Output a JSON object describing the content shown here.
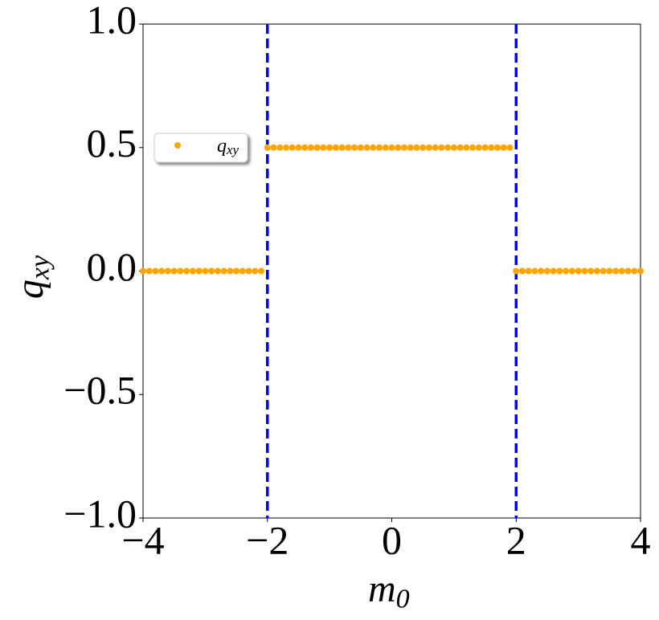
{
  "chart_data": {
    "type": "scatter",
    "x_label": {
      "text": "m",
      "sub": "0"
    },
    "y_label": {
      "text": "q",
      "sub": "xy"
    },
    "x": [
      -4,
      -3.9,
      -3.8,
      -3.7,
      -3.6,
      -3.5,
      -3.4,
      -3.3,
      -3.2,
      -3.1,
      -3,
      -2.9,
      -2.8,
      -2.7,
      -2.6,
      -2.5,
      -2.4,
      -2.3,
      -2.2,
      -2.1,
      -2,
      -1.9,
      -1.8,
      -1.7,
      -1.6,
      -1.5,
      -1.4,
      -1.3,
      -1.2,
      -1.1,
      -1,
      -0.9,
      -0.8,
      -0.7,
      -0.6,
      -0.5,
      -0.4,
      -0.3,
      -0.2,
      -0.1,
      0,
      0.1,
      0.2,
      0.3,
      0.4,
      0.5,
      0.6,
      0.7,
      0.8,
      0.9,
      1,
      1.1,
      1.2,
      1.3,
      1.4,
      1.5,
      1.6,
      1.7,
      1.8,
      1.9,
      2,
      2.1,
      2.2,
      2.3,
      2.4,
      2.5,
      2.6,
      2.7,
      2.8,
      2.9,
      3,
      3.1,
      3.2,
      3.3,
      3.4,
      3.5,
      3.6,
      3.7,
      3.8,
      3.9,
      4
    ],
    "series": [
      {
        "name": {
          "text": "q",
          "sub": "xy"
        },
        "color": "#ffa500",
        "values": [
          0,
          0,
          0,
          0,
          0,
          0,
          0,
          0,
          0,
          0,
          0,
          0,
          0,
          0,
          0,
          0,
          0,
          0,
          0,
          0,
          0.5,
          0.5,
          0.5,
          0.5,
          0.5,
          0.5,
          0.5,
          0.5,
          0.5,
          0.5,
          0.5,
          0.5,
          0.5,
          0.5,
          0.5,
          0.5,
          0.5,
          0.5,
          0.5,
          0.5,
          0.5,
          0.5,
          0.5,
          0.5,
          0.5,
          0.5,
          0.5,
          0.5,
          0.5,
          0.5,
          0.5,
          0.5,
          0.5,
          0.5,
          0.5,
          0.5,
          0.5,
          0.5,
          0.5,
          0.5,
          0,
          0,
          0,
          0,
          0,
          0,
          0,
          0,
          0,
          0,
          0,
          0,
          0,
          0,
          0,
          0,
          0,
          0,
          0,
          0,
          0
        ]
      }
    ],
    "vlines": [
      -2,
      2
    ],
    "vline_color": "#0000ff",
    "xlim": [
      -4,
      4
    ],
    "ylim": [
      -1,
      1
    ],
    "xticks": [
      {
        "value": -4,
        "label": "−4"
      },
      {
        "value": -2,
        "label": "−2"
      },
      0,
      2,
      4
    ],
    "yticks": [
      {
        "value": -1,
        "label": "−1.0"
      },
      {
        "value": -0.5,
        "label": "−0.5"
      },
      {
        "value": 0,
        "label": "0.0"
      },
      0.5,
      {
        "value": 1,
        "label": "1.0"
      }
    ],
    "legend": "upper left"
  }
}
